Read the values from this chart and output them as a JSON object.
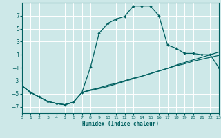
{
  "xlabel": "Humidex (Indice chaleur)",
  "bg_color": "#cde8e8",
  "grid_color": "#ffffff",
  "line_color": "#006060",
  "xlim": [
    0,
    23
  ],
  "ylim": [
    -8,
    9
  ],
  "xticks": [
    0,
    1,
    2,
    3,
    4,
    5,
    6,
    7,
    8,
    9,
    10,
    11,
    12,
    13,
    14,
    15,
    16,
    17,
    18,
    19,
    20,
    21,
    22,
    23
  ],
  "yticks": [
    -7,
    -5,
    -3,
    -1,
    1,
    3,
    5,
    7
  ],
  "line1_x": [
    0,
    1,
    2,
    3,
    4,
    5,
    6,
    7,
    8,
    9,
    10,
    11,
    12,
    13,
    14,
    15,
    16,
    17,
    18,
    19,
    20,
    21,
    22,
    23
  ],
  "line1_y": [
    -3.8,
    -4.8,
    -5.5,
    -6.2,
    -6.5,
    -6.7,
    -6.3,
    -4.8,
    -0.9,
    4.3,
    5.8,
    6.5,
    6.9,
    8.5,
    8.5,
    8.5,
    7.0,
    2.5,
    2.0,
    1.2,
    1.2,
    1.0,
    1.0,
    -1.0
  ],
  "line2_x": [
    0,
    1,
    2,
    3,
    4,
    5,
    6,
    7,
    8,
    9,
    10,
    11,
    12,
    13,
    14,
    15,
    16,
    17,
    18,
    19,
    20,
    21,
    22,
    23
  ],
  "line2_y": [
    -3.8,
    -4.8,
    -5.5,
    -6.2,
    -6.5,
    -6.7,
    -6.3,
    -4.8,
    -4.4,
    -4.1,
    -3.7,
    -3.4,
    -3.0,
    -2.6,
    -2.3,
    -1.9,
    -1.5,
    -1.1,
    -0.7,
    -0.4,
    0.0,
    0.3,
    0.6,
    0.9
  ],
  "line3_x": [
    0,
    1,
    2,
    3,
    4,
    5,
    6,
    7,
    8,
    9,
    10,
    11,
    12,
    13,
    14,
    15,
    16,
    17,
    18,
    19,
    20,
    21,
    22,
    23
  ],
  "line3_y": [
    -3.8,
    -4.8,
    -5.5,
    -6.2,
    -6.5,
    -6.7,
    -6.3,
    -4.8,
    -4.5,
    -4.2,
    -3.9,
    -3.5,
    -3.1,
    -2.7,
    -2.3,
    -1.9,
    -1.5,
    -1.1,
    -0.6,
    -0.2,
    0.2,
    0.6,
    1.0,
    1.4
  ]
}
